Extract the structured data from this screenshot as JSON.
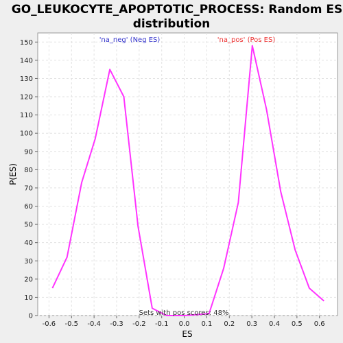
{
  "chart_data": {
    "type": "line",
    "title_line1": "GO_LEUKOCYTE_APOPTOTIC_PROCESS: Random ES",
    "title_line2": "distribution",
    "xlabel": "ES",
    "ylabel": "P(ES)",
    "xlim": [
      -0.65,
      0.68
    ],
    "ylim": [
      0,
      155
    ],
    "x_ticks": [
      -0.6,
      -0.5,
      -0.4,
      -0.3,
      -0.2,
      -0.1,
      0.0,
      0.1,
      0.2,
      0.3,
      0.4,
      0.5,
      0.6
    ],
    "x_tick_labels": [
      "-0.6",
      "-0.5",
      "-0.4",
      "-0.3",
      "-0.2",
      "-0.1",
      "0.0",
      "0.1",
      "0.2",
      "0.3",
      "0.4",
      "0.5",
      "0.6"
    ],
    "y_ticks": [
      0,
      10,
      20,
      30,
      40,
      50,
      60,
      70,
      80,
      90,
      100,
      110,
      120,
      130,
      140,
      150
    ],
    "y_tick_labels": [
      "0",
      "10",
      "20",
      "30",
      "40",
      "50",
      "60",
      "70",
      "80",
      "90",
      "100",
      "110",
      "120",
      "130",
      "140",
      "150"
    ],
    "grid": true,
    "series": [
      {
        "color": "#ff33ff",
        "x": [
          -0.585,
          -0.52,
          -0.455,
          -0.395,
          -0.33,
          -0.268,
          -0.205,
          -0.142,
          -0.078,
          0.0,
          0.11,
          0.175,
          0.24,
          0.302,
          0.365,
          0.428,
          0.492,
          0.555,
          0.62
        ],
        "y": [
          15,
          32,
          73,
          97,
          135,
          120,
          49,
          4,
          0,
          0,
          1,
          26,
          62,
          148,
          113,
          68,
          36,
          15,
          8
        ]
      }
    ],
    "annotations": {
      "neg_label": "'na_neg' (Neg ES)",
      "neg_color": "#3333cc",
      "pos_label": "'na_pos' (Pos ES)",
      "pos_color": "#ee3333",
      "pos_scores_note": "Sets with pos scores: 48%"
    }
  }
}
